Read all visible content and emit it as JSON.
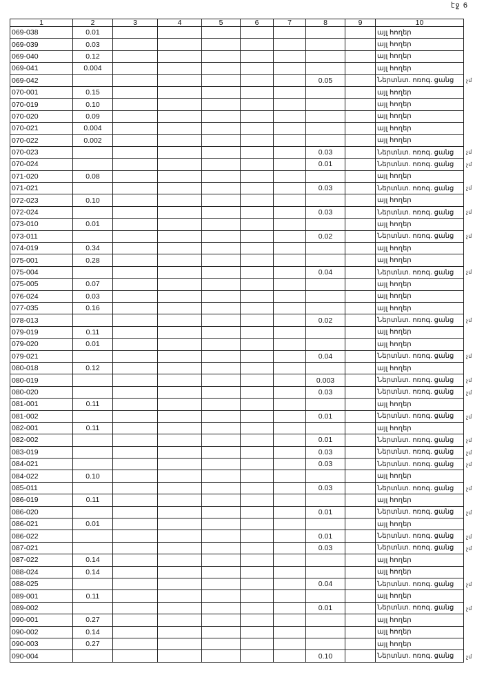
{
  "page_label": "էջ 6",
  "headers": [
    "1",
    "2",
    "3",
    "4",
    "5",
    "6",
    "7",
    "8",
    "9",
    "10"
  ],
  "labels": {
    "other": "այլ հողեր",
    "irrig": "Ներտնտ. ոռոգ. ցանց",
    "mark": "չմ"
  },
  "rows": [
    [
      "069-038",
      "0.01",
      "",
      "այլ հողեր",
      ""
    ],
    [
      "069-039",
      "0.03",
      "",
      "այլ հողեր",
      ""
    ],
    [
      "069-040",
      "0.12",
      "",
      "այլ հողեր",
      ""
    ],
    [
      "069-041",
      "0.004",
      "",
      "այլ հողեր",
      ""
    ],
    [
      "069-042",
      "",
      "0.05",
      "Ներտնտ. ոռոգ. ցանց",
      "չմ"
    ],
    [
      "070-001",
      "0.15",
      "",
      "այլ հողեր",
      ""
    ],
    [
      "070-019",
      "0.10",
      "",
      "այլ հողեր",
      ""
    ],
    [
      "070-020",
      "0.09",
      "",
      "այլ հողեր",
      ""
    ],
    [
      "070-021",
      "0.004",
      "",
      "այլ հողեր",
      ""
    ],
    [
      "070-022",
      "0.002",
      "",
      "այլ հողեր",
      ""
    ],
    [
      "070-023",
      "",
      "0.03",
      "Ներտնտ. ոռոգ. ցանց",
      "չմ"
    ],
    [
      "070-024",
      "",
      "0.01",
      "Ներտնտ. ոռոգ. ցանց",
      "չմ"
    ],
    [
      "071-020",
      "0.08",
      "",
      "այլ հողեր",
      ""
    ],
    [
      "071-021",
      "",
      "0.03",
      "Ներտնտ. ոռոգ. ցանց",
      "չմ"
    ],
    [
      "072-023",
      "0.10",
      "",
      "այլ հողեր",
      ""
    ],
    [
      "072-024",
      "",
      "0.03",
      "Ներտնտ. ոռոգ. ցանց",
      "չմ"
    ],
    [
      "073-010",
      "0.01",
      "",
      "այլ հողեր",
      ""
    ],
    [
      "073-011",
      "",
      "0.02",
      "Ներտնտ. ոռոգ. ցանց",
      "չմ"
    ],
    [
      "074-019",
      "0.34",
      "",
      "այլ հողեր",
      ""
    ],
    [
      "075-001",
      "0.28",
      "",
      "այլ հողեր",
      ""
    ],
    [
      "075-004",
      "",
      "0.04",
      "Ներտնտ. ոռոգ. ցանց",
      "չմ"
    ],
    [
      "075-005",
      "0.07",
      "",
      "այլ հողեր",
      ""
    ],
    [
      "076-024",
      "0.03",
      "",
      "այլ հողեր",
      ""
    ],
    [
      "077-035",
      "0.16",
      "",
      "այլ հողեր",
      ""
    ],
    [
      "078-013",
      "",
      "0.02",
      "Ներտնտ. ոռոգ. ցանց",
      "չմ"
    ],
    [
      "079-019",
      "0.11",
      "",
      "այլ հողեր",
      ""
    ],
    [
      "079-020",
      "0.01",
      "",
      "այլ հողեր",
      ""
    ],
    [
      "079-021",
      "",
      "0.04",
      "Ներտնտ. ոռոգ. ցանց",
      "չմ"
    ],
    [
      "080-018",
      "0.12",
      "",
      "այլ հողեր",
      ""
    ],
    [
      "080-019",
      "",
      "0.003",
      "Ներտնտ. ոռոգ. ցանց",
      "չմ"
    ],
    [
      "080-020",
      "",
      "0.03",
      "Ներտնտ. ոռոգ. ցանց",
      "չմ"
    ],
    [
      "081-001",
      "0.11",
      "",
      "այլ հողեր",
      ""
    ],
    [
      "081-002",
      "",
      "0.01",
      "Ներտնտ. ոռոգ. ցանց",
      "չմ"
    ],
    [
      "082-001",
      "0.11",
      "",
      "այլ հողեր",
      ""
    ],
    [
      "082-002",
      "",
      "0.01",
      "Ներտնտ. ոռոգ. ցանց",
      "չմ"
    ],
    [
      "083-019",
      "",
      "0.03",
      "Ներտնտ. ոռոգ. ցանց",
      "չմ"
    ],
    [
      "084-021",
      "",
      "0.03",
      "Ներտնտ. ոռոգ. ցանց",
      "չմ"
    ],
    [
      "084-022",
      "0.10",
      "",
      "այլ հողեր",
      ""
    ],
    [
      "085-011",
      "",
      "0.03",
      "Ներտնտ. ոռոգ. ցանց",
      "չմ"
    ],
    [
      "086-019",
      "0.11",
      "",
      "այլ հողեր",
      ""
    ],
    [
      "086-020",
      "",
      "0.01",
      "Ներտնտ. ոռոգ. ցանց",
      "չմ"
    ],
    [
      "086-021",
      "0.01",
      "",
      "այլ հողեր",
      ""
    ],
    [
      "086-022",
      "",
      "0.01",
      "Ներտնտ. ոռոգ. ցանց",
      "չմ"
    ],
    [
      "087-021",
      "",
      "0.03",
      "Ներտնտ. ոռոգ. ցանց",
      "չմ"
    ],
    [
      "087-022",
      "0.14",
      "",
      "այլ հողեր",
      ""
    ],
    [
      "088-024",
      "0.14",
      "",
      "այլ հողեր",
      ""
    ],
    [
      "088-025",
      "",
      "0.04",
      "Ներտնտ. ոռոգ. ցանց",
      "չմ"
    ],
    [
      "089-001",
      "0.11",
      "",
      "այլ հողեր",
      ""
    ],
    [
      "089-002",
      "",
      "0.01",
      "Ներտնտ. ոռոգ. ցանց",
      "չմ"
    ],
    [
      "090-001",
      "0.27",
      "",
      "այլ հողեր",
      ""
    ],
    [
      "090-002",
      "0.14",
      "",
      "այլ հողեր",
      ""
    ],
    [
      "090-003",
      "0.27",
      "",
      "այլ հողեր",
      ""
    ],
    [
      "090-004",
      "",
      "0.10",
      "Ներտնտ. ոռոգ. ցանց",
      "չմ"
    ]
  ]
}
